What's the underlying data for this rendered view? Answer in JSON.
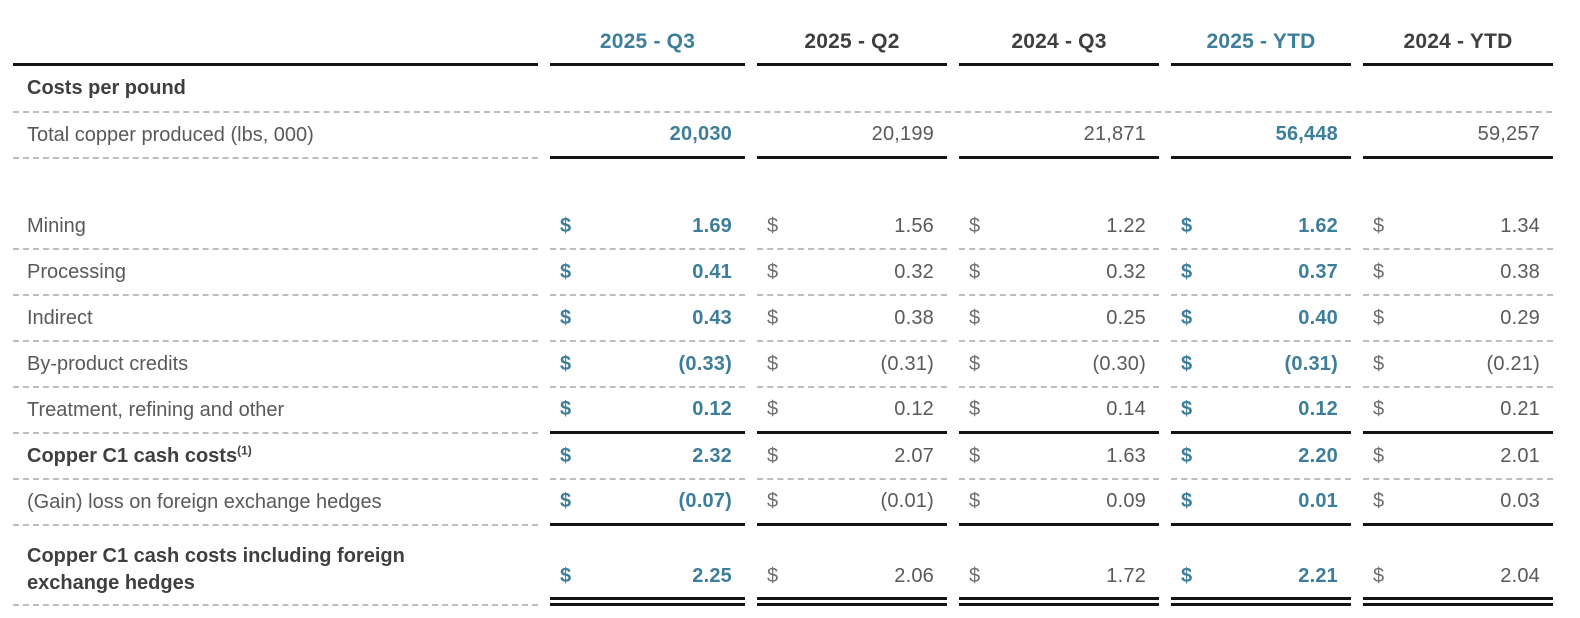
{
  "colors": {
    "accent_teal": "#3d7e9a",
    "dark_text": "#3f3f3f",
    "body_text": "#595959",
    "rule_black": "#141414",
    "rule_dashed_gray": "#bdbdbd"
  },
  "table": {
    "section_title": "Costs per pound",
    "columns": [
      {
        "label": "2025 - Q3",
        "highlighted": true
      },
      {
        "label": "2025 - Q2",
        "highlighted": false
      },
      {
        "label": "2024 - Q3",
        "highlighted": false
      },
      {
        "label": "2025 - YTD",
        "highlighted": true
      },
      {
        "label": "2024 - YTD",
        "highlighted": false
      }
    ],
    "rows": [
      {
        "label": "Total copper produced (lbs, 000)",
        "bold": false,
        "dollar": false,
        "values": [
          "20,030",
          "20,199",
          "21,871",
          "56,448",
          "59,257"
        ],
        "value_line": "solid"
      },
      {
        "spacer": true
      },
      {
        "label": "Mining",
        "bold": false,
        "dollar": true,
        "values": [
          "1.69",
          "1.56",
          "1.22",
          "1.62",
          "1.34"
        ],
        "value_line": "dashed"
      },
      {
        "label": "Processing",
        "bold": false,
        "dollar": true,
        "values": [
          "0.41",
          "0.32",
          "0.32",
          "0.37",
          "0.38"
        ],
        "value_line": "dashed"
      },
      {
        "label": "Indirect",
        "bold": false,
        "dollar": true,
        "values": [
          "0.43",
          "0.38",
          "0.25",
          "0.40",
          "0.29"
        ],
        "value_line": "dashed"
      },
      {
        "label": "By-product credits",
        "bold": false,
        "dollar": true,
        "values": [
          "(0.33)",
          "(0.31)",
          "(0.30)",
          "(0.31)",
          "(0.21)"
        ],
        "value_line": "dashed"
      },
      {
        "label": "Treatment, refining and other",
        "bold": false,
        "dollar": true,
        "values": [
          "0.12",
          "0.12",
          "0.14",
          "0.12",
          "0.21"
        ],
        "value_line": "solid"
      },
      {
        "label": "Copper C1 cash costs",
        "sup": "(1)",
        "bold": true,
        "dollar": true,
        "values": [
          "2.32",
          "2.07",
          "1.63",
          "2.20",
          "2.01"
        ],
        "value_line": "dashed"
      },
      {
        "label": "(Gain) loss on foreign exchange hedges",
        "bold": false,
        "dollar": true,
        "values": [
          "(0.07)",
          "(0.01)",
          "0.09",
          "0.01",
          "0.03"
        ],
        "value_line": "solid"
      },
      {
        "label": "Copper C1 cash costs including foreign exchange hedges",
        "bold": true,
        "dollar": true,
        "values": [
          "2.25",
          "2.06",
          "1.72",
          "2.21",
          "2.04"
        ],
        "value_line": "double",
        "tall": true
      }
    ]
  }
}
